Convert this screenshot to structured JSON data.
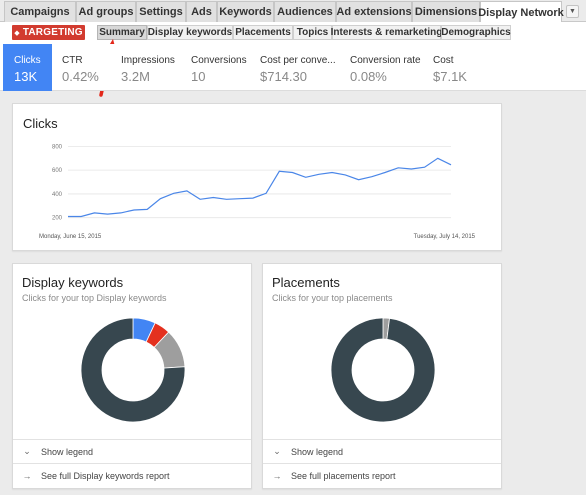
{
  "tabs": [
    {
      "label": "Campaigns",
      "active": false
    },
    {
      "label": "Ad groups",
      "active": false
    },
    {
      "label": "Settings",
      "active": false
    },
    {
      "label": "Ads",
      "active": false
    },
    {
      "label": "Keywords",
      "active": false
    },
    {
      "label": "Audiences",
      "active": false
    },
    {
      "label": "Ad extensions",
      "active": false
    },
    {
      "label": "Dimensions",
      "active": false
    },
    {
      "label": "Display Network",
      "active": true
    }
  ],
  "targeting_label": "TARGETING",
  "subtabs": [
    {
      "label": "Summary",
      "active": true
    },
    {
      "label": "Display keywords",
      "active": false
    },
    {
      "label": "Placements",
      "active": false
    },
    {
      "label": "Topics",
      "active": false
    },
    {
      "label": "Interests & remarketing",
      "active": false
    },
    {
      "label": "Demographics",
      "active": false
    }
  ],
  "metrics": [
    {
      "label": "Clicks",
      "value": "13K",
      "active": true
    },
    {
      "label": "CTR",
      "value": "0.42%",
      "active": false
    },
    {
      "label": "Impressions",
      "value": "3.2M",
      "active": false
    },
    {
      "label": "Conversions",
      "value": "10",
      "active": false
    },
    {
      "label": "Cost per conve...",
      "value": "$714.30",
      "active": false
    },
    {
      "label": "Conversion rate",
      "value": "0.08%",
      "active": false
    },
    {
      "label": "Cost",
      "value": "$7.1K",
      "active": false
    }
  ],
  "clicks_card": {
    "title": "Clicks"
  },
  "chart_data": {
    "type": "line",
    "title": "Clicks",
    "x_start_label": "Monday, June 15, 2015",
    "x_end_label": "Tuesday, July 14, 2015",
    "y_ticks": [
      200,
      400,
      600,
      800
    ],
    "ylim": [
      130,
      820
    ],
    "series": [
      {
        "values": [
          210,
          210,
          240,
          230,
          240,
          265,
          270,
          360,
          405,
          425,
          355,
          370,
          355,
          360,
          365,
          405,
          590,
          580,
          540,
          565,
          580,
          560,
          520,
          545,
          580,
          620,
          610,
          625,
          700,
          645
        ]
      }
    ],
    "line_color": "#4a86e8"
  },
  "display_keywords_card": {
    "title": "Display keywords",
    "subtitle": "Clicks for your top Display keywords",
    "show_legend": "Show legend",
    "report_link": "See full Display keywords report"
  },
  "placements_card": {
    "title": "Placements",
    "subtitle": "Clicks for your top placements",
    "show_legend": "Show legend",
    "report_link": "See full placements report"
  },
  "donut_keywords": {
    "type": "pie",
    "slices": [
      {
        "value": 7,
        "color": "#4285f4"
      },
      {
        "value": 5,
        "color": "#e4311f"
      },
      {
        "value": 12,
        "color": "#9e9e9e"
      },
      {
        "value": 76,
        "color": "#37474f"
      }
    ]
  },
  "donut_placements": {
    "type": "pie",
    "slices": [
      {
        "value": 2,
        "color": "#9e9e9e"
      },
      {
        "value": 98,
        "color": "#37474f"
      }
    ]
  }
}
